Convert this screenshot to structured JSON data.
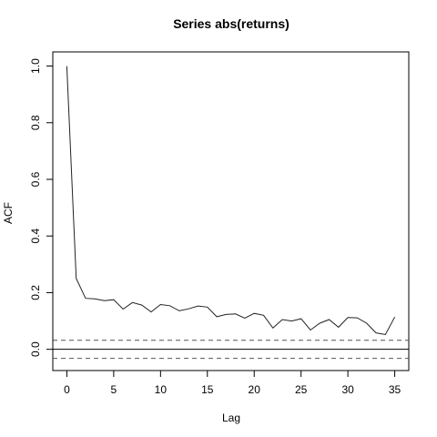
{
  "chart_data": {
    "type": "line",
    "title": "Series  abs(returns)",
    "xlabel": "Lag",
    "ylabel": "ACF",
    "xlim": [
      -1.5,
      36.5
    ],
    "ylim": [
      -0.075,
      1.05
    ],
    "xticks": [
      0,
      5,
      10,
      15,
      20,
      25,
      30,
      35
    ],
    "yticks": [
      0.0,
      0.2,
      0.4,
      0.6,
      0.8,
      1.0
    ],
    "ytick_labels": [
      "0.0",
      "0.2",
      "0.4",
      "0.6",
      "0.8",
      "1.0"
    ],
    "grid": false,
    "series": [
      {
        "x": [
          0,
          1,
          2,
          3,
          4,
          5,
          6,
          7,
          8,
          9,
          10,
          11,
          12,
          13,
          14,
          15,
          16,
          17,
          18,
          19,
          20,
          21,
          22,
          23,
          24,
          25,
          26,
          27,
          28,
          29,
          30,
          31,
          32,
          33,
          34,
          35
        ],
        "values": [
          1.0,
          0.25,
          0.18,
          0.178,
          0.172,
          0.175,
          0.142,
          0.165,
          0.156,
          0.132,
          0.158,
          0.154,
          0.136,
          0.143,
          0.153,
          0.149,
          0.115,
          0.123,
          0.125,
          0.11,
          0.127,
          0.12,
          0.075,
          0.105,
          0.1,
          0.108,
          0.068,
          0.092,
          0.105,
          0.078,
          0.112,
          0.111,
          0.092,
          0.058,
          0.052,
          0.114
        ]
      }
    ],
    "reference_lines": [
      {
        "y": 0.0,
        "style": "solid"
      },
      {
        "y": 0.032,
        "style": "dashed"
      },
      {
        "y": -0.032,
        "style": "dashed"
      }
    ]
  }
}
